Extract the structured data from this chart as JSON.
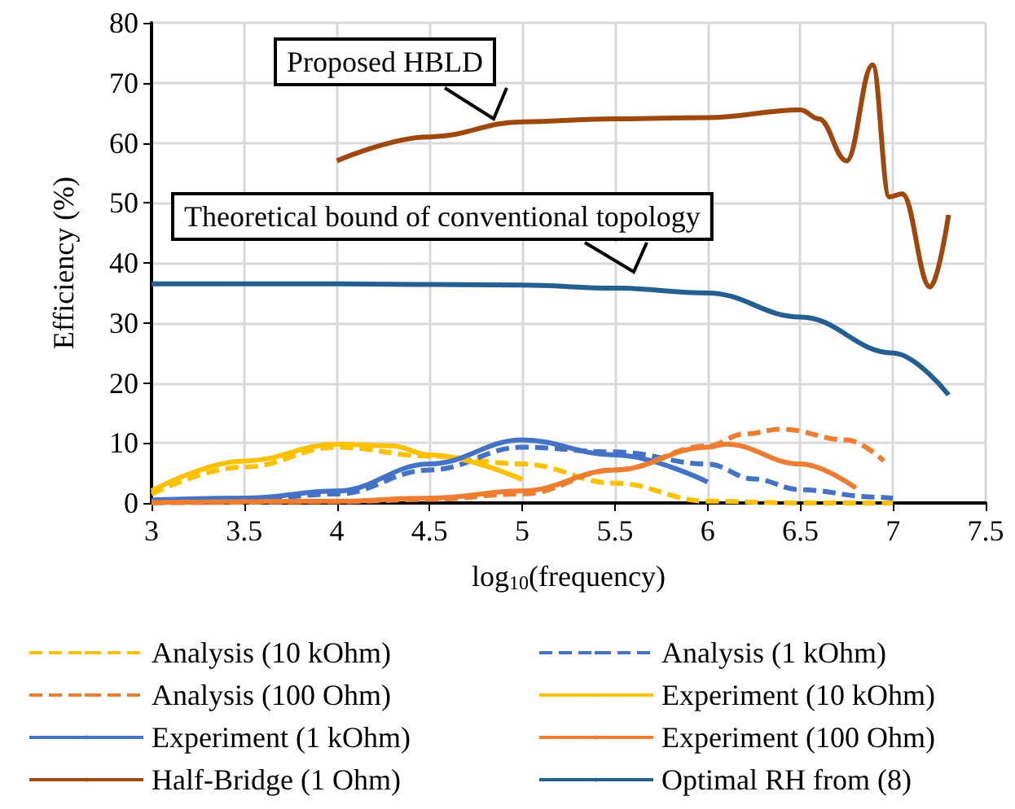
{
  "chart_data": {
    "type": "line",
    "xlabel": "log$_{10}$(frequency)",
    "ylabel": "Efficiency (%)",
    "xlim": [
      3,
      7.5
    ],
    "xticks": [
      3,
      3.5,
      4,
      4.5,
      5,
      5.5,
      6,
      6.5,
      7,
      7.5
    ],
    "ylim": [
      0,
      80
    ],
    "yticks": [
      0,
      10,
      20,
      30,
      40,
      50,
      60,
      70,
      80
    ],
    "grid": true,
    "legend": "bottom",
    "marker": "none",
    "annotations": [
      "Proposed HBLD",
      "Theoretical bound of conventional topology"
    ],
    "series": [
      {
        "name": "Analysis (10 kOhm)",
        "color": "#ffc000",
        "line_style": "dashed",
        "x": [
          3,
          3.5,
          4,
          4.5,
          5,
          5.5,
          6,
          6.5,
          7
        ],
        "values": [
          1.5,
          6,
          9.3,
          7.8,
          6.5,
          3.3,
          0.3,
          0,
          0
        ]
      },
      {
        "name": "Analysis (1 kOhm)",
        "color": "#4472c4",
        "line_style": "dashed",
        "x": [
          3,
          3.5,
          4,
          4.5,
          5,
          5.5,
          6,
          6.25,
          6.5,
          6.9,
          7
        ],
        "values": [
          0.2,
          0.5,
          1.5,
          5.5,
          9.3,
          8.5,
          6.5,
          4,
          2.2,
          1,
          0.8
        ]
      },
      {
        "name": "Analysis (100 Ohm)",
        "color": "#ed7d31",
        "line_style": "dashed",
        "x": [
          3,
          4,
          4.5,
          5,
          5.5,
          6,
          6.2,
          6.4,
          6.75,
          6.95
        ],
        "values": [
          0,
          0.2,
          0.6,
          1.5,
          5.5,
          9.5,
          11.5,
          12.3,
          10.5,
          7
        ]
      },
      {
        "name": "Experiment (10 kOhm)",
        "color": "#ffc000",
        "line_style": "solid",
        "x": [
          3,
          3.5,
          4,
          4.3,
          4.5,
          5
        ],
        "values": [
          2,
          7,
          9.8,
          9.5,
          8,
          3.9
        ]
      },
      {
        "name": "Experiment (1 kOhm)",
        "color": "#4472c4",
        "line_style": "solid",
        "x": [
          3,
          3.5,
          4,
          4.5,
          5,
          5.5,
          6
        ],
        "values": [
          0.5,
          0.8,
          2,
          6.5,
          10.5,
          8,
          3.5
        ]
      },
      {
        "name": "Experiment (100 Ohm)",
        "color": "#ed7d31",
        "line_style": "solid",
        "x": [
          3,
          4,
          4.5,
          5,
          5.5,
          6,
          6.1,
          6.5,
          6.8
        ],
        "values": [
          0.1,
          0.3,
          0.8,
          2,
          5.5,
          9.3,
          9.8,
          6.5,
          2.5
        ]
      },
      {
        "name": "Half-Bridge (1 Ohm)",
        "color": "#9e480e",
        "line_style": "solid",
        "x": [
          4,
          4.5,
          5,
          5.5,
          6,
          6.5,
          6.6,
          6.75,
          6.89,
          6.98,
          7.05,
          7.2,
          7.3
        ],
        "values": [
          57,
          61,
          63.5,
          64,
          64.2,
          65.5,
          64,
          57,
          73,
          51,
          51.5,
          36,
          48
        ]
      },
      {
        "name": "Optimal RH from (8)",
        "color": "#255e91",
        "line_style": "solid",
        "x": [
          3,
          4,
          5,
          5.5,
          6,
          6.5,
          7,
          7.3
        ],
        "values": [
          36.5,
          36.5,
          36.3,
          35.8,
          35,
          31,
          25,
          18
        ]
      }
    ]
  }
}
